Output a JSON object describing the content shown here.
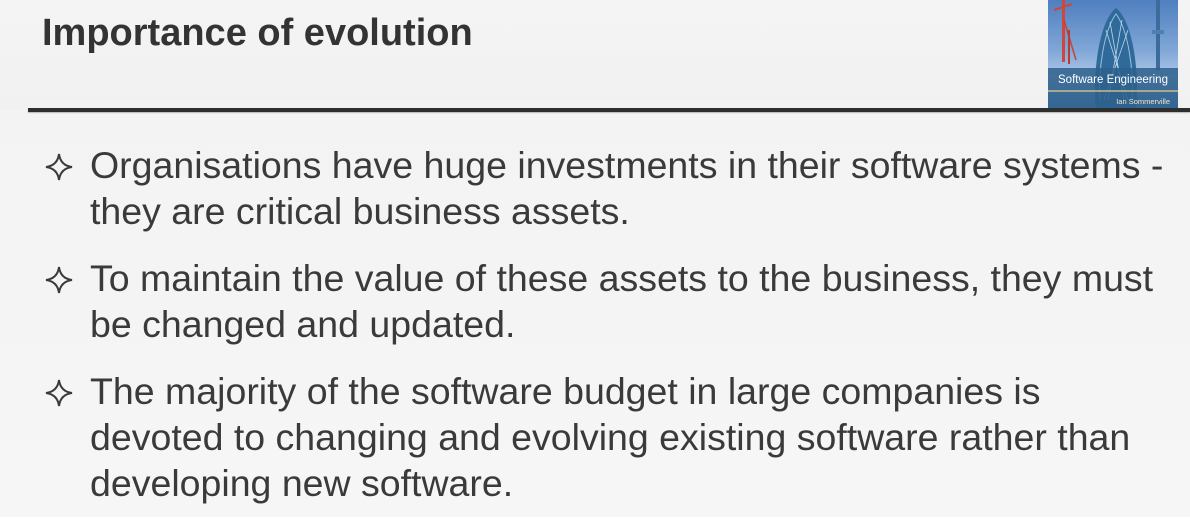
{
  "slide": {
    "title": "Importance of evolution",
    "book_cover": {
      "title": "Software Engineering",
      "author": "Ian Sommerville"
    },
    "bullets": [
      "Organisations have huge investments in their software systems - they are critical business assets.",
      "To maintain the value of these assets to the business, they must be changed and updated.",
      "The majority of the software budget in large companies is devoted to changing and evolving existing software rather than developing new software."
    ]
  },
  "icons": {
    "bullet": "four-point-star-icon"
  },
  "colors": {
    "title_text": "#333333",
    "body_text": "#3a3a3a",
    "rule": "#2e2e2e",
    "background": "#f4f4f4"
  }
}
